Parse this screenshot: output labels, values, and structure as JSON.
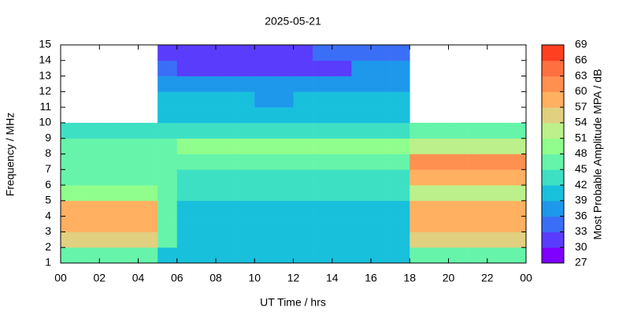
{
  "chart_data": {
    "type": "heatmap",
    "title": "2025-05-21",
    "xlabel": "UT Time / hrs",
    "ylabel": "Frequency / MHz",
    "xlim": [
      0,
      24
    ],
    "xticks": [
      {
        "value": 0,
        "label": "00"
      },
      {
        "value": 2,
        "label": "02"
      },
      {
        "value": 4,
        "label": "04"
      },
      {
        "value": 6,
        "label": "06"
      },
      {
        "value": 8,
        "label": "08"
      },
      10,
      12,
      14,
      16,
      18,
      20,
      22,
      {
        "value": 24,
        "label": "00"
      }
    ],
    "ylim": [
      1,
      15
    ],
    "yticks": [
      1,
      2,
      3,
      4,
      5,
      6,
      7,
      8,
      9,
      10,
      11,
      12,
      13,
      14,
      15
    ],
    "values": [
      [
        45,
        45,
        45,
        45,
        45,
        39,
        39,
        39,
        39,
        39,
        39,
        39,
        39,
        39,
        39,
        39,
        39,
        39,
        45,
        45,
        45,
        45,
        45,
        45
      ],
      [
        54,
        54,
        54,
        54,
        54,
        45,
        40,
        40,
        40,
        40,
        40,
        40,
        40,
        40,
        40,
        40,
        40,
        40,
        54,
        54,
        54,
        54,
        54,
        54
      ],
      [
        57,
        57,
        57,
        57,
        57,
        45,
        40,
        40,
        40,
        40,
        40,
        40,
        40,
        40,
        40,
        40,
        40,
        40,
        57,
        57,
        57,
        57,
        57,
        57
      ],
      [
        57,
        57,
        57,
        57,
        57,
        45,
        41,
        41,
        41,
        41,
        41,
        41,
        41,
        41,
        41,
        41,
        41,
        41,
        57,
        57,
        57,
        57,
        57,
        57
      ],
      [
        48,
        48,
        48,
        48,
        48,
        45,
        42,
        42,
        42,
        42,
        42,
        42,
        42,
        42,
        42,
        42,
        42,
        42,
        51,
        51,
        51,
        51,
        51,
        51
      ],
      [
        45,
        45,
        45,
        45,
        45,
        45,
        44,
        44,
        44,
        44,
        44,
        44,
        44,
        44,
        44,
        44,
        44,
        44,
        57,
        57,
        57,
        57,
        57,
        57
      ],
      [
        45,
        45,
        45,
        45,
        45,
        45,
        45,
        45,
        45,
        45,
        45,
        45,
        45,
        45,
        45,
        45,
        45,
        45,
        60,
        60,
        60,
        60,
        60,
        60
      ],
      [
        45,
        45,
        45,
        45,
        45,
        45,
        48,
        48,
        48,
        48,
        48,
        48,
        48,
        48,
        48,
        48,
        48,
        48,
        51,
        51,
        51,
        51,
        51,
        51
      ],
      [
        42,
        42,
        42,
        42,
        42,
        42,
        42,
        42,
        42,
        42,
        42,
        42,
        42,
        42,
        42,
        42,
        42,
        42,
        45,
        45,
        45,
        45,
        45,
        45
      ],
      [
        null,
        null,
        null,
        null,
        null,
        39,
        39,
        39,
        39,
        39,
        39,
        39,
        39,
        39,
        39,
        39,
        39,
        39,
        null,
        null,
        null,
        null,
        null,
        null
      ],
      [
        null,
        null,
        null,
        null,
        null,
        39,
        39,
        39,
        39,
        39,
        36,
        36,
        39,
        39,
        39,
        39,
        39,
        39,
        null,
        null,
        null,
        null,
        null,
        null
      ],
      [
        null,
        null,
        null,
        null,
        null,
        38,
        38,
        38,
        38,
        38,
        36,
        36,
        38,
        38,
        38,
        38,
        38,
        38,
        null,
        null,
        null,
        null,
        null,
        null
      ],
      [
        null,
        null,
        null,
        null,
        null,
        33,
        30,
        30,
        30,
        30,
        30,
        30,
        30,
        30,
        30,
        36,
        36,
        36,
        null,
        null,
        null,
        null,
        null,
        null
      ],
      [
        null,
        null,
        null,
        null,
        null,
        30,
        30,
        30,
        30,
        30,
        30,
        30,
        30,
        33,
        33,
        33,
        33,
        33,
        null,
        null,
        null,
        null,
        null,
        null
      ]
    ],
    "colorbar": {
      "label": "Most Probable Amplitude MPA / dB",
      "lim": [
        27,
        69
      ],
      "ticks": [
        27,
        30,
        33,
        36,
        39,
        42,
        45,
        48,
        51,
        54,
        57,
        60,
        63,
        66,
        69
      ],
      "colors": [
        "#7f00ff",
        "#5a3cfc",
        "#3b6ef6",
        "#1e98eb",
        "#18c0dc",
        "#3ee0c4",
        "#66f4aa",
        "#90fe8c",
        "#bcf08a",
        "#e0d080",
        "#ffb060",
        "#ff9050",
        "#ff7040",
        "#ff4020"
      ]
    }
  }
}
